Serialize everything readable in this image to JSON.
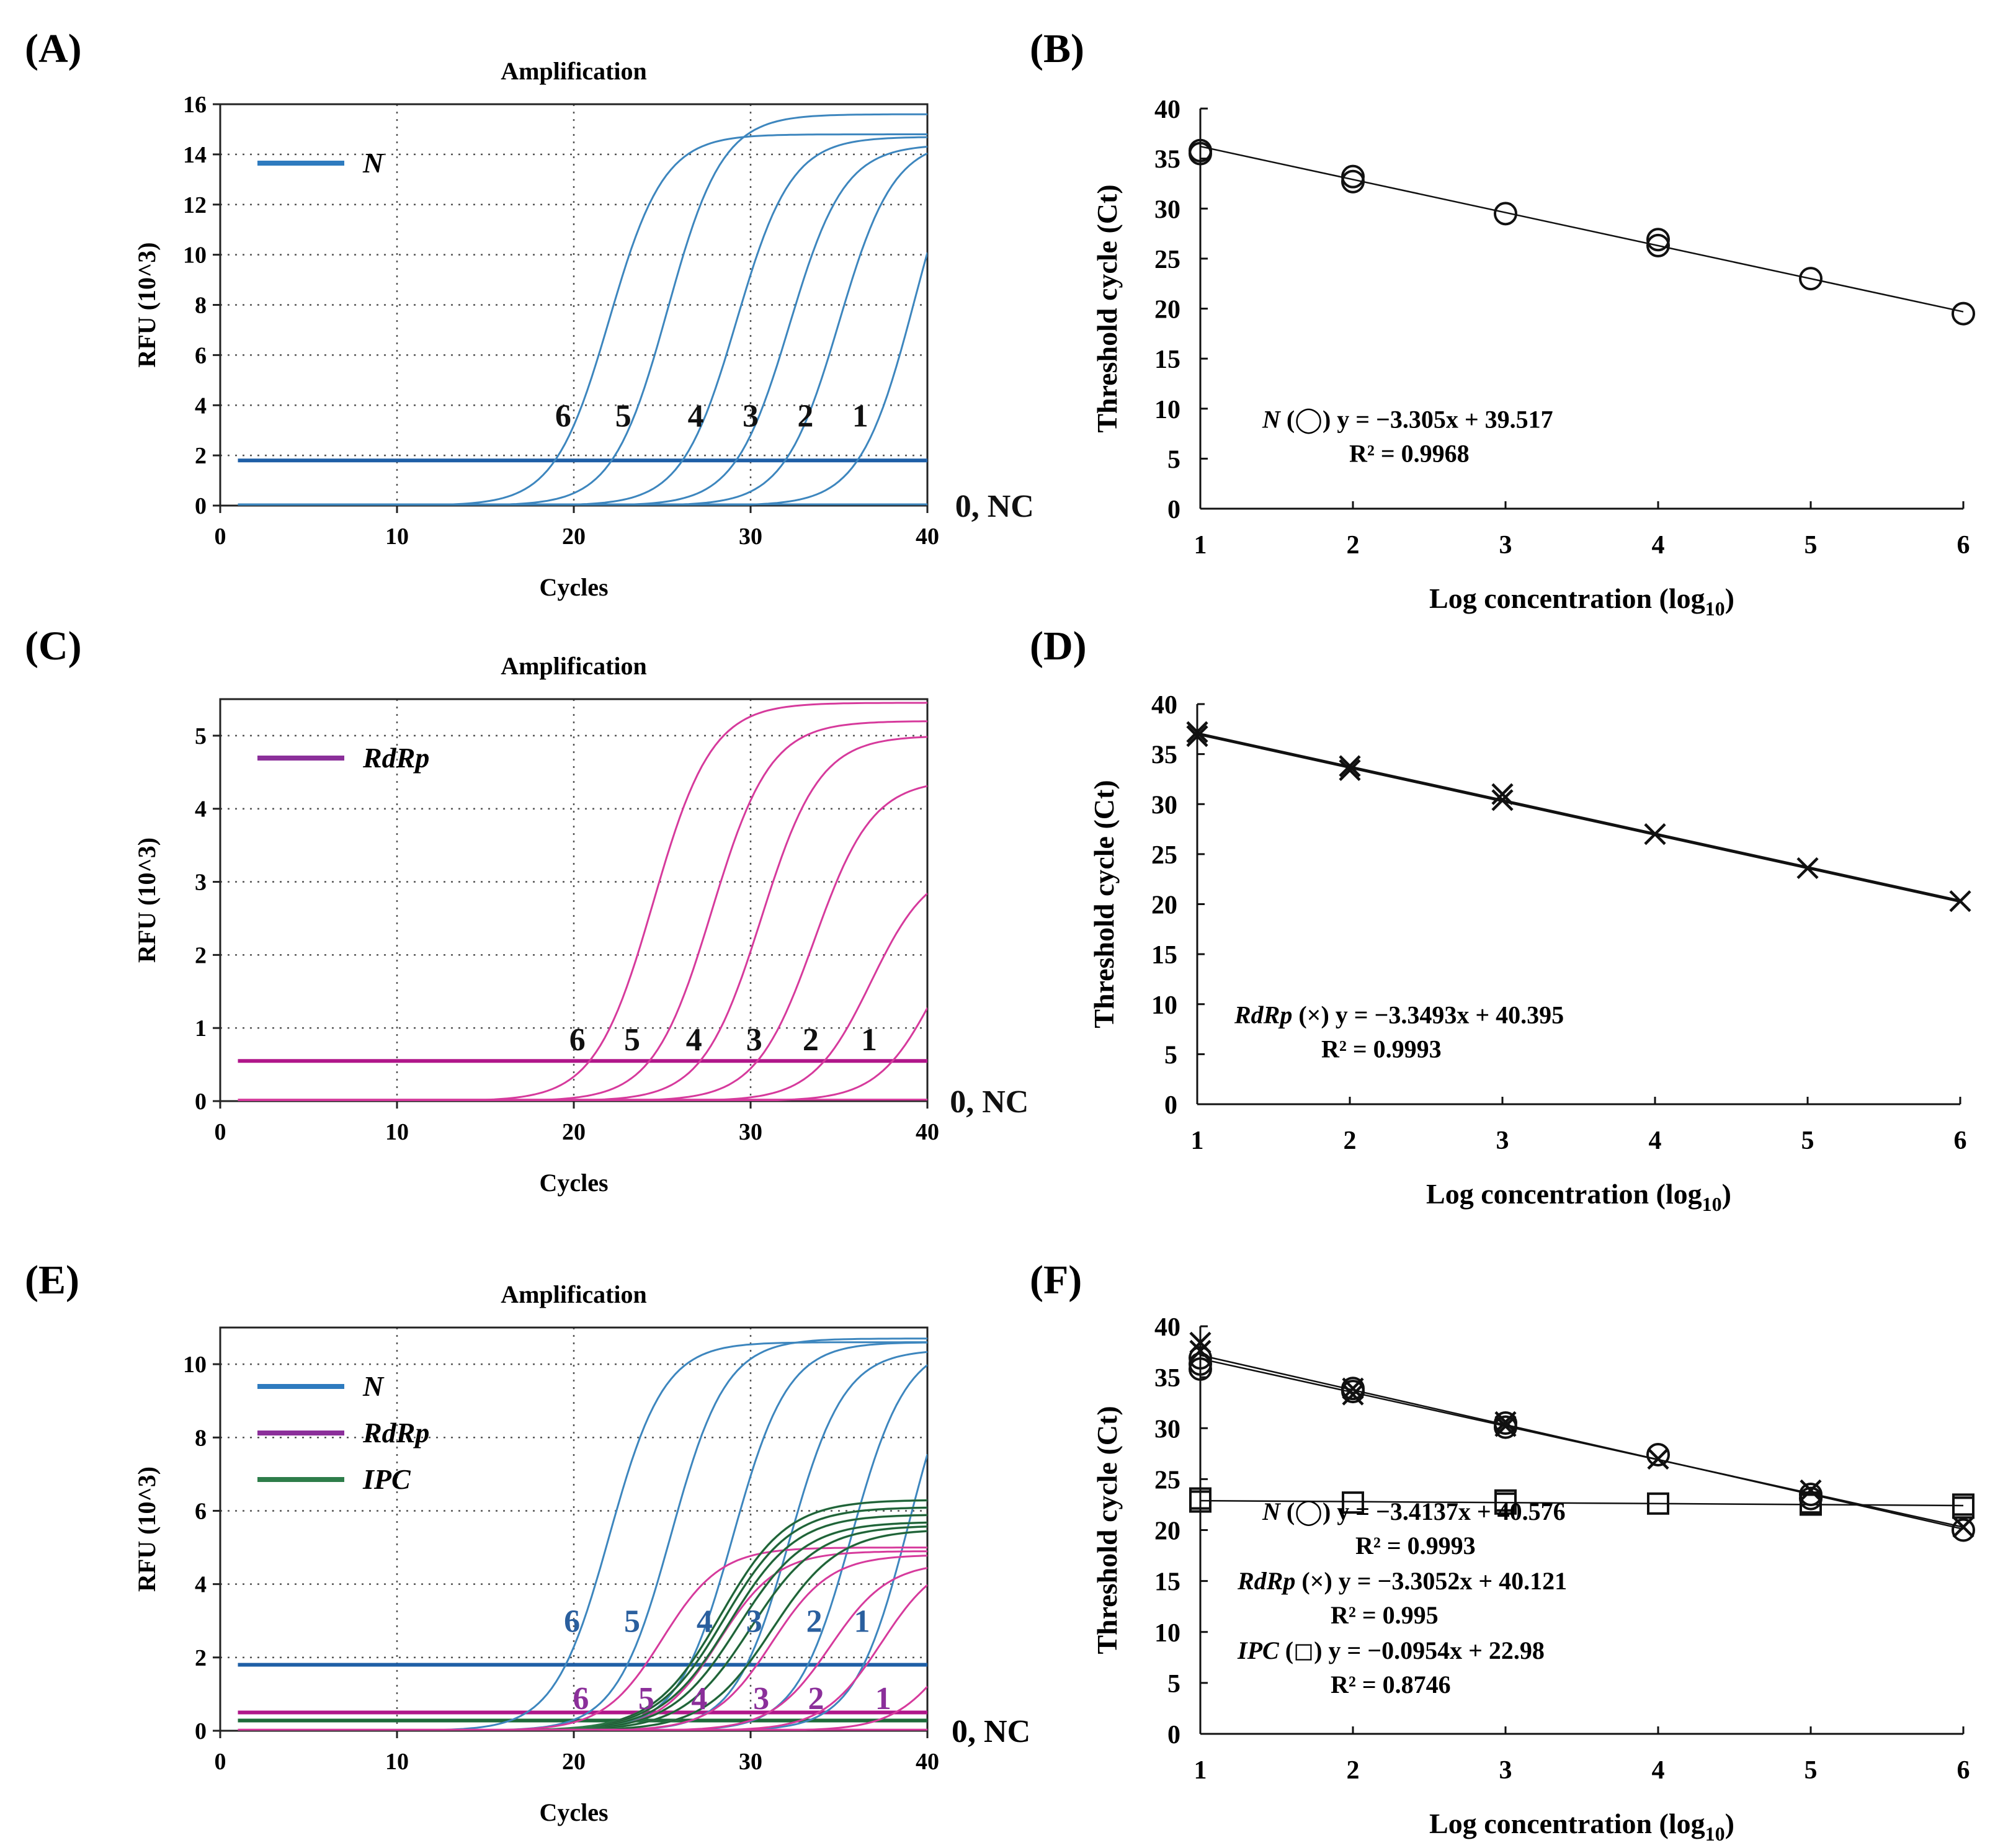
{
  "chart_data": [
    {
      "panel": "(A)",
      "type": "line",
      "title": "Amplification",
      "xlabel": "Cycles",
      "ylabel": "RFU (10^3)",
      "xlim": [
        0,
        40
      ],
      "ylim": [
        0,
        16
      ],
      "xticks": [
        0,
        10,
        20,
        30,
        40
      ],
      "yticks": [
        0,
        2,
        4,
        6,
        8,
        10,
        12,
        14,
        16
      ],
      "grid": true,
      "legend": [
        {
          "label": "N",
          "color": "#2e7bbf"
        }
      ],
      "threshold": {
        "y": 1.8,
        "color": "#1f5fa6"
      },
      "series": [
        {
          "name": "6",
          "color": "#3d86be",
          "midpoint": 22.0,
          "plateau": 14.8,
          "slope": 1.55
        },
        {
          "name": "5",
          "color": "#3d86be",
          "midpoint": 25.3,
          "plateau": 15.6,
          "slope": 1.55
        },
        {
          "name": "4",
          "color": "#3d86be",
          "midpoint": 29.2,
          "plateau": 14.7,
          "slope": 1.55
        },
        {
          "name": "3",
          "color": "#3d86be",
          "midpoint": 32.2,
          "plateau": 14.4,
          "slope": 1.55
        },
        {
          "name": "2",
          "color": "#3d86be",
          "midpoint": 35.0,
          "plateau": 14.6,
          "slope": 1.55
        },
        {
          "name": "1",
          "color": "#3d86be",
          "midpoint": 39.3,
          "plateau": 16.5,
          "slope": 1.55
        },
        {
          "name": "0, NC",
          "color": "#3d86be",
          "flat": 0.05
        }
      ],
      "curve_labels": [
        {
          "text": "6",
          "x": 19.4,
          "y": 3.6
        },
        {
          "text": "5",
          "x": 22.8,
          "y": 3.6
        },
        {
          "text": "4",
          "x": 26.9,
          "y": 3.6
        },
        {
          "text": "3",
          "x": 30.0,
          "y": 3.6
        },
        {
          "text": "2",
          "x": 33.1,
          "y": 3.6
        },
        {
          "text": "1",
          "x": 36.2,
          "y": 3.6
        },
        {
          "text": "0, NC",
          "x": 43.8,
          "y": 0.0
        }
      ]
    },
    {
      "panel": "(B)",
      "type": "scatter",
      "xlabel": "Log concentration (log10)",
      "ylabel": "Threshold cycle (Ct)",
      "xlim": [
        1,
        6
      ],
      "ylim": [
        0,
        40
      ],
      "xticks": [
        1,
        2,
        3,
        4,
        5,
        6
      ],
      "yticks": [
        0,
        5,
        10,
        15,
        20,
        25,
        30,
        35,
        40
      ],
      "series": [
        {
          "name": "N",
          "marker": "circle",
          "x": [
            1,
            1,
            2,
            2,
            3,
            4,
            4,
            5,
            6
          ],
          "y": [
            35.8,
            35.5,
            33.2,
            32.7,
            29.5,
            26.9,
            26.3,
            23.0,
            19.5
          ],
          "fit": {
            "slope": -3.305,
            "intercept": 39.517
          }
        }
      ],
      "annotations": [
        {
          "gene": "N",
          "symbol": "(◯)",
          "equation": "y = −3.305x + 39.517",
          "r2_label": "R² = 0.9968"
        }
      ]
    },
    {
      "panel": "(C)",
      "type": "line",
      "title": "Amplification",
      "xlabel": "Cycles",
      "ylabel": "RFU (10^3)",
      "xlim": [
        0,
        40
      ],
      "ylim": [
        0,
        5.5
      ],
      "xticks": [
        0,
        10,
        20,
        30,
        40
      ],
      "yticks": [
        0,
        1,
        2,
        3,
        4,
        5
      ],
      "grid": true,
      "legend": [
        {
          "label": "RdRp",
          "color": "#8b2f9a"
        }
      ],
      "threshold": {
        "y": 0.55,
        "color": "#b0168a"
      },
      "series": [
        {
          "name": "6",
          "color": "#d63a9c",
          "midpoint": 24.5,
          "plateau": 5.45,
          "slope": 1.65
        },
        {
          "name": "5",
          "color": "#d63a9c",
          "midpoint": 27.8,
          "plateau": 5.2,
          "slope": 1.65
        },
        {
          "name": "4",
          "color": "#d63a9c",
          "midpoint": 30.6,
          "plateau": 5.0,
          "slope": 1.65
        },
        {
          "name": "3",
          "color": "#d63a9c",
          "midpoint": 33.6,
          "plateau": 4.4,
          "slope": 1.65
        },
        {
          "name": "2",
          "color": "#d63a9c",
          "midpoint": 36.8,
          "plateau": 3.25,
          "slope": 1.65
        },
        {
          "name": "1",
          "color": "#d63a9c",
          "midpoint": 40.5,
          "plateau": 3.0,
          "slope": 1.65
        },
        {
          "name": "0, NC",
          "color": "#d63a9c",
          "flat": 0.02
        }
      ],
      "curve_labels": [
        {
          "text": "6",
          "x": 20.2,
          "y": 0.85
        },
        {
          "text": "5",
          "x": 23.3,
          "y": 0.85
        },
        {
          "text": "4",
          "x": 26.8,
          "y": 0.85
        },
        {
          "text": "3",
          "x": 30.2,
          "y": 0.85
        },
        {
          "text": "2",
          "x": 33.4,
          "y": 0.85
        },
        {
          "text": "1",
          "x": 36.7,
          "y": 0.85
        },
        {
          "text": "0, NC",
          "x": 43.5,
          "y": 0.0
        }
      ]
    },
    {
      "panel": "(D)",
      "type": "scatter",
      "xlabel": "Log concentration (log10)",
      "ylabel": "Threshold cycle (Ct)",
      "xlim": [
        1,
        6
      ],
      "ylim": [
        0,
        40
      ],
      "xticks": [
        1,
        2,
        3,
        4,
        5,
        6
      ],
      "yticks": [
        0,
        5,
        10,
        15,
        20,
        25,
        30,
        35,
        40
      ],
      "series": [
        {
          "name": "RdRp",
          "marker": "x",
          "x": [
            1,
            1,
            2,
            2,
            3,
            3,
            4,
            5,
            6
          ],
          "y": [
            37.2,
            36.8,
            33.8,
            33.4,
            31.0,
            30.4,
            27.0,
            23.6,
            20.3
          ],
          "fit": {
            "slope": -3.3493,
            "intercept": 40.395
          }
        }
      ],
      "annotations": [
        {
          "gene": "RdRp",
          "symbol": "(×)",
          "equation": "y = −3.3493x + 40.395",
          "r2_label": "R² = 0.9993"
        }
      ]
    },
    {
      "panel": "(E)",
      "type": "line",
      "title": "Amplification",
      "xlabel": "Cycles",
      "ylabel": "RFU (10^3)",
      "xlim": [
        0,
        40
      ],
      "ylim": [
        0,
        11
      ],
      "xticks": [
        0,
        10,
        20,
        30,
        40
      ],
      "yticks": [
        0,
        2,
        4,
        6,
        8,
        10
      ],
      "grid": true,
      "legend": [
        {
          "label": "N",
          "color": "#2e7bbf"
        },
        {
          "label": "RdRp",
          "color": "#8b2f9a"
        },
        {
          "label": "IPC",
          "color": "#2e7d4a"
        }
      ],
      "thresholds": [
        {
          "y": 1.8,
          "color": "#1f5fa6"
        },
        {
          "y": 0.5,
          "color": "#b0168a"
        },
        {
          "y": 0.28,
          "color": "#1e6b3a"
        }
      ],
      "series": [
        {
          "name": "N 6",
          "color": "#3d86be",
          "midpoint": 22.0,
          "plateau": 10.6,
          "slope": 1.55
        },
        {
          "name": "N 5",
          "color": "#3d86be",
          "midpoint": 25.5,
          "plateau": 10.7,
          "slope": 1.55
        },
        {
          "name": "N 4",
          "color": "#3d86be",
          "midpoint": 29.0,
          "plateau": 10.6,
          "slope": 1.55
        },
        {
          "name": "N 3",
          "color": "#3d86be",
          "midpoint": 32.2,
          "plateau": 10.4,
          "slope": 1.55
        },
        {
          "name": "N 2",
          "color": "#3d86be",
          "midpoint": 35.7,
          "plateau": 10.6,
          "slope": 1.55
        },
        {
          "name": "N 1",
          "color": "#3d86be",
          "midpoint": 39.0,
          "plateau": 11.5,
          "slope": 1.55
        },
        {
          "name": "RdRp 6",
          "color": "#d63a9c",
          "midpoint": 25.0,
          "plateau": 5.0,
          "slope": 1.65
        },
        {
          "name": "RdRp 5",
          "color": "#d63a9c",
          "midpoint": 28.2,
          "plateau": 4.9,
          "slope": 1.65
        },
        {
          "name": "RdRp 4",
          "color": "#d63a9c",
          "midpoint": 31.2,
          "plateau": 4.8,
          "slope": 1.65
        },
        {
          "name": "RdRp 3",
          "color": "#d63a9c",
          "midpoint": 34.5,
          "plateau": 4.6,
          "slope": 1.65
        },
        {
          "name": "RdRp 2",
          "color": "#d63a9c",
          "midpoint": 37.4,
          "plateau": 4.8,
          "slope": 1.65
        },
        {
          "name": "RdRp 1",
          "color": "#d63a9c",
          "midpoint": 41.5,
          "plateau": 4.2,
          "slope": 1.65
        },
        {
          "name": "IPC a",
          "color": "#2e7d4a",
          "midpoint": 28.3,
          "plateau": 6.3,
          "slope": 1.9
        },
        {
          "name": "IPC b",
          "color": "#2e7d4a",
          "midpoint": 28.5,
          "plateau": 6.1,
          "slope": 1.9
        },
        {
          "name": "IPC c",
          "color": "#2e7d4a",
          "midpoint": 28.8,
          "plateau": 5.9,
          "slope": 1.9
        },
        {
          "name": "IPC d",
          "color": "#2e7d4a",
          "midpoint": 29.3,
          "plateau": 5.7,
          "slope": 1.9
        },
        {
          "name": "IPC e",
          "color": "#2e7d4a",
          "midpoint": 30.0,
          "plateau": 5.6,
          "slope": 1.9
        },
        {
          "name": "IPC f",
          "color": "#2e7d4a",
          "midpoint": 31.2,
          "plateau": 5.5,
          "slope": 1.9
        },
        {
          "name": "0, NC",
          "color": "#d63a9c",
          "flat": 0.03
        }
      ],
      "curve_labels": [
        {
          "text": "6",
          "x": 19.9,
          "y": 3.0,
          "color": "#2a5f9e"
        },
        {
          "text": "5",
          "x": 23.3,
          "y": 3.0,
          "color": "#2a5f9e"
        },
        {
          "text": "4",
          "x": 27.4,
          "y": 3.0,
          "color": "#2a5f9e"
        },
        {
          "text": "3",
          "x": 30.2,
          "y": 3.0,
          "color": "#2a5f9e"
        },
        {
          "text": "2",
          "x": 33.6,
          "y": 3.0,
          "color": "#2a5f9e"
        },
        {
          "text": "1",
          "x": 36.3,
          "y": 3.0,
          "color": "#2a5f9e"
        },
        {
          "text": "6",
          "x": 20.4,
          "y": 0.9,
          "color": "#8b2f9a"
        },
        {
          "text": "5",
          "x": 24.1,
          "y": 0.9,
          "color": "#8b2f9a"
        },
        {
          "text": "4",
          "x": 27.1,
          "y": 0.9,
          "color": "#8b2f9a"
        },
        {
          "text": "3",
          "x": 30.6,
          "y": 0.9,
          "color": "#8b2f9a"
        },
        {
          "text": "2",
          "x": 33.7,
          "y": 0.9,
          "color": "#8b2f9a"
        },
        {
          "text": "1",
          "x": 37.5,
          "y": 0.9,
          "color": "#8b2f9a"
        },
        {
          "text": "0, NC",
          "x": 43.6,
          "y": 0.0,
          "color": "#000000"
        }
      ]
    },
    {
      "panel": "(F)",
      "type": "scatter",
      "xlabel": "Log concentration (log10)",
      "ylabel": "Threshold cycle (Ct)",
      "xlim": [
        1,
        6
      ],
      "ylim": [
        0,
        40
      ],
      "xticks": [
        1,
        2,
        3,
        4,
        5,
        6
      ],
      "yticks": [
        0,
        5,
        10,
        15,
        20,
        25,
        30,
        35,
        40
      ],
      "series": [
        {
          "name": "N",
          "marker": "circle",
          "x": [
            1,
            1,
            1,
            2,
            2,
            3,
            3,
            4,
            5,
            5,
            6
          ],
          "y": [
            36.9,
            36.3,
            35.8,
            33.9,
            33.6,
            30.5,
            30.1,
            27.4,
            23.5,
            23.1,
            20.0
          ],
          "fit": {
            "slope": -3.4137,
            "intercept": 40.576
          }
        },
        {
          "name": "RdRp",
          "marker": "x",
          "x": [
            1,
            1,
            2,
            2,
            3,
            3,
            4,
            5,
            6
          ],
          "y": [
            38.4,
            37.6,
            33.9,
            33.3,
            30.6,
            30.2,
            27.0,
            23.9,
            20.3
          ],
          "fit": {
            "slope": -3.3052,
            "intercept": 40.121
          }
        },
        {
          "name": "IPC",
          "marker": "square",
          "x": [
            1,
            1,
            2,
            3,
            3,
            4,
            5,
            5,
            6,
            6
          ],
          "y": [
            23.1,
            22.8,
            22.7,
            22.9,
            22.6,
            22.6,
            22.7,
            22.5,
            22.5,
            22.2
          ],
          "fit": {
            "slope": -0.0954,
            "intercept": 22.98
          }
        }
      ],
      "annotations": [
        {
          "gene": "N",
          "symbol": "(◯)",
          "equation": "y = −3.4137x + 40.576",
          "r2_label": "R² = 0.9993"
        },
        {
          "gene": "RdRp",
          "symbol": "(×)",
          "equation": "y = −3.3052x + 40.121",
          "r2_label": "R² = 0.995"
        },
        {
          "gene": "IPC",
          "symbol": "(◻)",
          "equation": "y = −0.0954x + 22.98",
          "r2_label": "R² = 0.8746"
        }
      ]
    }
  ],
  "panel_labels": [
    "(A)",
    "(B)",
    "(C)",
    "(D)",
    "(E)",
    "(F)"
  ]
}
